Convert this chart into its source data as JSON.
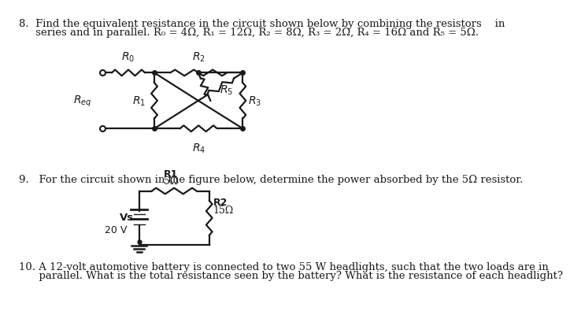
{
  "bg_color": "#ffffff",
  "text_color": "#1a1a1a",
  "q8_line1": "8.  Find the equivalent resistance in the circuit shown below by combining the resistors    in",
  "q8_line2": "     series and in parallel. R₀ = 4Ω, R₁ = 12Ω, R₂ = 8Ω, R₃ = 2Ω, R₄ = 16Ω and R₅ = 5Ω.",
  "q9_line1": "9.   For the circuit shown in the figure below, determine the power absorbed by the 5Ω resistor.",
  "q10_line1": "10. A 12-volt automotive battery is connected to two 55 W headlights, such that the two loads are in",
  "q10_line2": "      parallel. What is the total resistance seen by the battery? What is the resistance of each headlight?",
  "font_size": 9.5,
  "label_font_size": 9.0,
  "lw": 1.6,
  "amp": 5,
  "color": "#1a1a1a"
}
